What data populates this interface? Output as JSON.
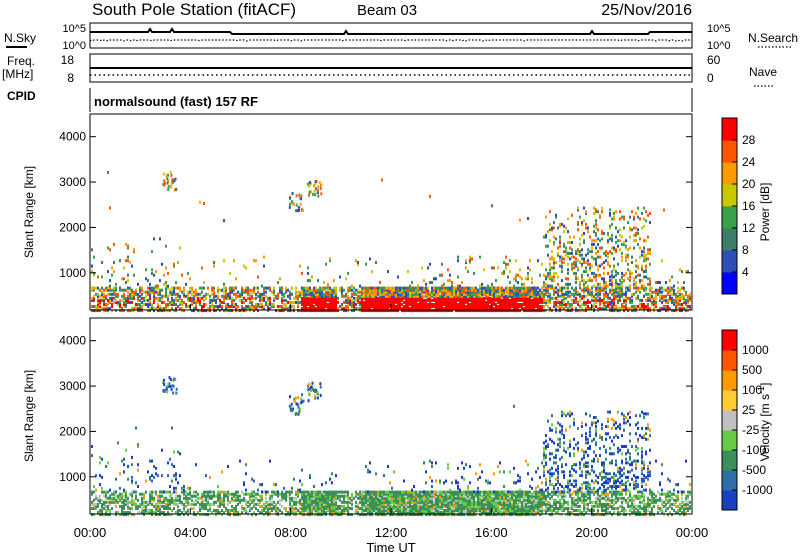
{
  "header": {
    "station": "South Pole Station (fitACF)",
    "beam": "Beam 03",
    "date": "25/Nov/2016"
  },
  "top_panels": {
    "nsky_label": "N.Sky",
    "nsearch_label": "N.Search",
    "noise_ticks_left": [
      "10^5",
      "10^0"
    ],
    "noise_ticks_right": [
      "10^5",
      "10^0"
    ],
    "freq_label": "Freq.",
    "freq_unit": "[MHz]",
    "freq_ticks": [
      "18",
      "8"
    ],
    "nave_label": "Nave",
    "nave_ticks": [
      "60",
      "0"
    ],
    "cpid_label": "CPID",
    "cpid_text": "normalsound (fast) 157 RF"
  },
  "chart_data": [
    {
      "type": "heatmap",
      "panel": "power",
      "ylabel": "Slant Range [km]",
      "xlabel": "",
      "ylim": [
        180,
        4500
      ],
      "yticks": [
        "1000",
        "2000",
        "3000",
        "4000"
      ],
      "xlim": [
        "00:00",
        "24:00"
      ],
      "colorbar": {
        "label": "Power [dB]",
        "ticks": [
          "4",
          "8",
          "12",
          "16",
          "20",
          "24",
          "28"
        ],
        "range": [
          0,
          30
        ],
        "colors": [
          "#0000ff",
          "#2f4fb8",
          "#3d7e6a",
          "#3aa04a",
          "#c8c800",
          "#ff9900",
          "#ff5500",
          "#ff0000"
        ]
      }
    },
    {
      "type": "heatmap",
      "panel": "velocity",
      "ylabel": "Slant Range [km]",
      "xlabel": "Time UT",
      "ylim": [
        180,
        4500
      ],
      "yticks": [
        "1000",
        "2000",
        "3000",
        "4000"
      ],
      "xticks": [
        "00:00",
        "04:00",
        "08:00",
        "12:00",
        "16:00",
        "20:00",
        "00:00"
      ],
      "xlim": [
        "00:00",
        "24:00"
      ],
      "colorbar": {
        "label": "Velocity [m s^-1]",
        "ticks": [
          "1000",
          "500",
          "100",
          "25",
          "-25",
          "-100",
          "-500",
          "-1000"
        ],
        "colors": [
          "#1a3fbf",
          "#2f6fa8",
          "#3d8f5a",
          "#66cc44",
          "#c0c0c0",
          "#ffcc33",
          "#ff9900",
          "#ff5500",
          "#ff0000"
        ]
      }
    }
  ]
}
